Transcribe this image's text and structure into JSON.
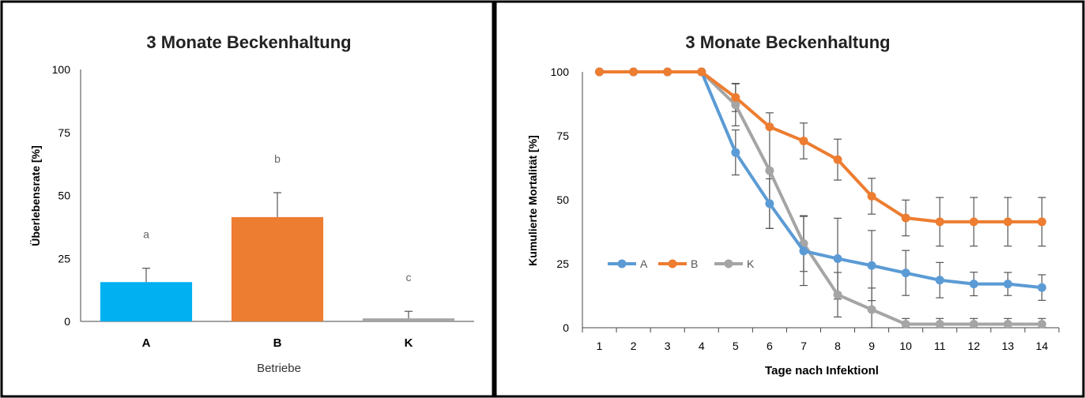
{
  "chart_data": [
    {
      "type": "bar",
      "title": "3 Monate Beckenhaltung",
      "xlabel": "Betriebe",
      "ylabel": "Überlebensrate [%]",
      "ylim": [
        0,
        100
      ],
      "yticks": [
        0,
        25,
        50,
        75,
        100
      ],
      "categories": [
        "A",
        "B",
        "K"
      ],
      "values": [
        15.6,
        41.4,
        1.2
      ],
      "errors": [
        5.5,
        9.7,
        2.8
      ],
      "significance_labels": [
        "a",
        "b",
        "c"
      ],
      "colors": [
        "#00B0F0",
        "#ED7D31",
        "#A5A5A5"
      ],
      "grid": false,
      "legend": "none"
    },
    {
      "type": "line",
      "title": "3 Monate Beckenhaltung",
      "xlabel": "Tage nach Infektionl",
      "ylabel": "Kumulierte Mortalität [%]",
      "ylim": [
        0,
        100
      ],
      "yticks": [
        0,
        25,
        50,
        75,
        100
      ],
      "x": [
        1,
        2,
        3,
        4,
        5,
        6,
        7,
        8,
        9,
        10,
        11,
        12,
        13,
        14
      ],
      "series": [
        {
          "name": "A",
          "color": "#5B9BD5",
          "values": [
            100,
            100,
            100,
            100,
            68.5,
            48.5,
            30,
            27,
            24.3,
            21.4,
            18.6,
            17.1,
            17.1,
            15.7
          ],
          "errors": [
            0,
            0,
            0,
            0,
            8.8,
            9.7,
            13.5,
            15.8,
            13.7,
            8.8,
            6.9,
            4.6,
            4.5,
            5
          ]
        },
        {
          "name": "B",
          "color": "#ED7D31",
          "values": [
            100,
            100,
            100,
            100,
            90,
            78.5,
            73,
            65.7,
            51.4,
            42.9,
            41.4,
            41.4,
            41.4,
            41.4
          ],
          "errors": [
            0,
            0,
            0,
            0,
            5.5,
            0,
            7,
            8,
            7,
            7,
            9.5,
            9.5,
            9.5,
            9.5
          ]
        },
        {
          "name": "K",
          "color": "#A5A5A5",
          "values": [
            100,
            100,
            100,
            100,
            87.1,
            61.4,
            32.9,
            12.9,
            7.1,
            1.4,
            1.4,
            1.4,
            1.4,
            1.4
          ],
          "errors": [
            0,
            0,
            0,
            0,
            8.2,
            22.6,
            10.9,
            8.7,
            8.4,
            2.2,
            2.2,
            2.2,
            2.2,
            2.2
          ]
        }
      ],
      "grid": false,
      "legend": "middle-left"
    }
  ]
}
